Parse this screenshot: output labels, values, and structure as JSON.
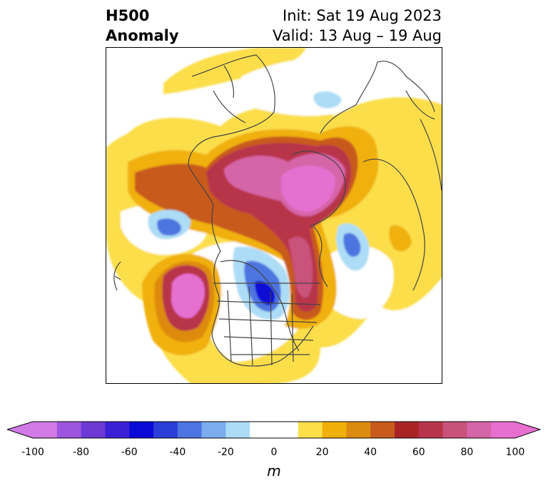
{
  "title": {
    "left_line1": "H500",
    "left_line2": "Anomaly",
    "right_line1": "Init: Sat 19 Aug 2023",
    "right_line2": "Valid: 13 Aug – 19 Aug"
  },
  "colorbar": {
    "unit": "m",
    "ticks": [
      "-100",
      "-80",
      "-60",
      "-40",
      "-20",
      "0",
      "20",
      "40",
      "60",
      "80",
      "100"
    ],
    "colors": [
      "#d27ae6",
      "#9d55df",
      "#6d3ad6",
      "#3a21d6",
      "#0a0ad6",
      "#2b3ed8",
      "#4d74e0",
      "#7aacee",
      "#acdcf6",
      "#ffffff",
      "#ffffff",
      "#fbde4a",
      "#f0b00a",
      "#dd8a10",
      "#c85a1c",
      "#aa2426",
      "#b8344a",
      "#c9527a",
      "#d665a8",
      "#e66fd0"
    ],
    "extend_low": "#d27ae6",
    "extend_high": "#e66fd0"
  },
  "map": {
    "projection": "polar-stereographic",
    "field": "500 hPa geopotential height anomaly"
  }
}
